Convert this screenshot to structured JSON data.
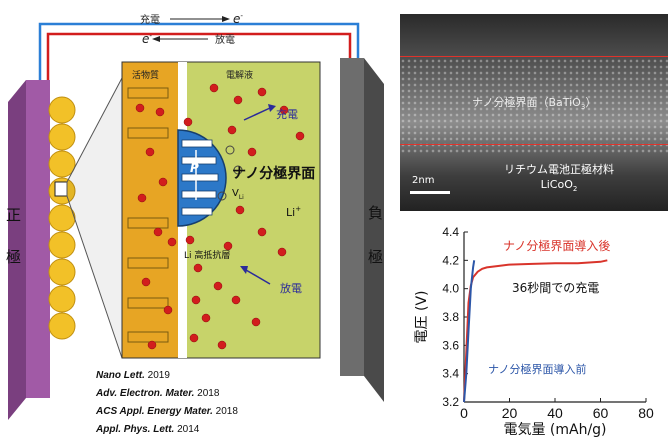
{
  "schematic": {
    "charge_label": "充電",
    "discharge_label": "放電",
    "electron_symbol": "e",
    "positive_electrode_label": [
      "正",
      "極"
    ],
    "negative_electrode_label": [
      "負",
      "極"
    ],
    "active_material_label": "活物質",
    "electrolyte_label": "電解液",
    "charge_arrow_label": "充電",
    "discharge_arrow_label": "放電",
    "nano_interface_label": "ナノ分極界面",
    "dipole_symbol": "P",
    "voltage_symbol": "V",
    "voltage_subscript": "Li",
    "li_ion_label": "Li",
    "li_ion_superscript": "+",
    "high_resistance_layer_label": "Li 高抵抗層",
    "colors": {
      "positive_electrode": "#a15aa6",
      "negative_electrode": "#6d6d6d",
      "active_material": "#e7a524",
      "electrolyte": "#c7d36a",
      "particle": "#f2c128",
      "li_ion": "#d21d1d",
      "interface": "#2c78c8",
      "wire_top": "#2b7fd6",
      "wire_bottom": "#d21d1d"
    }
  },
  "citations": [
    {
      "journal": "Nano Lett.",
      "year": "2019"
    },
    {
      "journal": "Adv. Electron. Mater.",
      "year": "2018"
    },
    {
      "journal": "ACS Appl. Energy Mater.",
      "year": "2018"
    },
    {
      "journal": "Appl. Phys. Lett.",
      "year": "2014"
    }
  ],
  "tem_image": {
    "upper_label": "ナノ分極界面（BaTiO",
    "upper_label_subscript": "3",
    "upper_label_end": "）",
    "lower_label_line1": "リチウム電池正極材料",
    "lower_label_line2_main": "LiCoO",
    "lower_label_line2_sub": "2",
    "scale_bar_label": "2nm"
  },
  "chart_data": {
    "type": "line",
    "xlabel": "電気量 (mAh/g)",
    "ylabel": "電圧 (V)",
    "xlim": [
      0,
      80
    ],
    "ylim": [
      3.2,
      4.4
    ],
    "x_ticks": [
      "0",
      "20",
      "40",
      "60",
      "80"
    ],
    "y_ticks": [
      "3.2",
      "3.4",
      "3.6",
      "3.8",
      "4.0",
      "4.2",
      "4.4"
    ],
    "series": [
      {
        "name": "ナノ分極界面導入後",
        "color": "#d9342b",
        "x": [
          0,
          1,
          2,
          3,
          4,
          5,
          6,
          8,
          10,
          15,
          20,
          30,
          40,
          50,
          60,
          63
        ],
        "y": [
          3.2,
          3.55,
          3.9,
          4.02,
          4.08,
          4.1,
          4.12,
          4.14,
          4.15,
          4.16,
          4.17,
          4.175,
          4.18,
          4.18,
          4.19,
          4.2
        ]
      },
      {
        "name": "ナノ分極界面導入前",
        "color": "#2c56a8",
        "x": [
          0,
          1,
          2,
          3,
          4,
          4.5
        ],
        "y": [
          3.2,
          3.4,
          3.7,
          4.0,
          4.15,
          4.2
        ]
      }
    ],
    "annotation": "36秒間での充電"
  }
}
